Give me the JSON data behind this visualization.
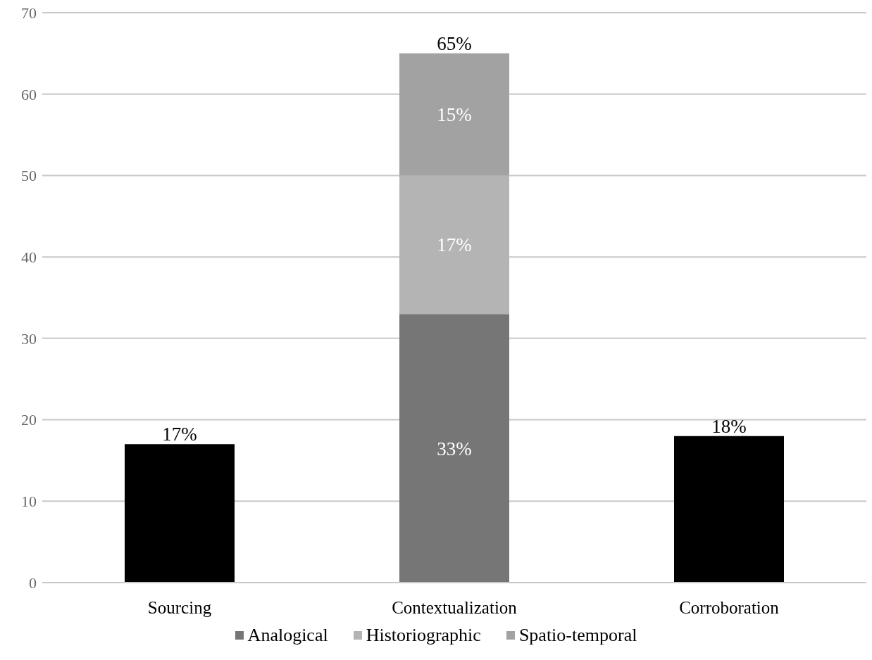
{
  "chart_data": {
    "type": "bar",
    "stacked": true,
    "categories": [
      "Sourcing",
      "Contextualization",
      "Corroboration"
    ],
    "series": [
      {
        "color": "#000000",
        "values": [
          17,
          null,
          18
        ],
        "value_labels": [
          "17%",
          null,
          "18%"
        ]
      },
      {
        "name": "Analogical",
        "color": "#767676",
        "values": [
          null,
          33,
          null
        ],
        "value_labels": [
          null,
          "33%",
          null
        ]
      },
      {
        "name": "Historiographic",
        "color": "#b4b4b4",
        "values": [
          null,
          17,
          null
        ],
        "value_labels": [
          null,
          "17%",
          null
        ]
      },
      {
        "name": "Spatio-temporal",
        "color": "#a2a2a2",
        "values": [
          null,
          15,
          null
        ],
        "value_labels": [
          null,
          "15%",
          null
        ]
      }
    ],
    "totals": [
      null,
      "65%",
      null
    ],
    "ylim": [
      0,
      70
    ],
    "yticks": [
      0,
      10,
      20,
      30,
      40,
      50,
      60,
      70
    ],
    "grid": "y",
    "legend": "bottom"
  }
}
